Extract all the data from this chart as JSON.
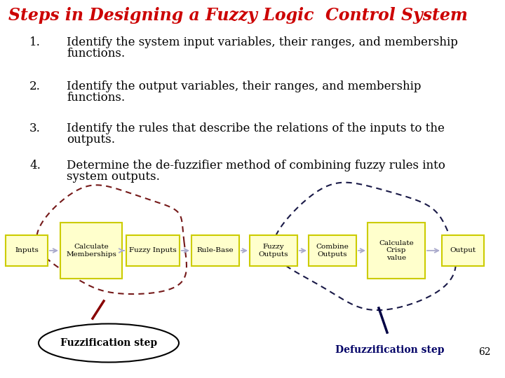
{
  "title": "Steps in Designing a Fuzzy Logic  Control System",
  "title_color": "#cc0000",
  "title_fontsize": 17,
  "background_color": "#ffffff",
  "text_color": "#000000",
  "step_numbers": [
    "1.",
    "2.",
    "3.",
    "4."
  ],
  "step_lines": [
    [
      "Identify the system input variables, their ranges, and membership",
      "functions."
    ],
    [
      "Identify the output variables, their ranges, and membership",
      "functions."
    ],
    [
      "Identify the rules that describe the relations of the inputs to the",
      "outputs."
    ],
    [
      "Determine the de-fuzzifier method of combining fuzzy rules into",
      "system outputs."
    ]
  ],
  "box_color": "#ffffcc",
  "box_edge_color": "#cccc00",
  "arrow_color": "#aaaacc",
  "fuzz_blob_color": "#660000",
  "defuzz_blob_color": "#000033",
  "fuzz_label": "Fuzzification step",
  "defuzz_label": "Defuzzification step",
  "page_number": "62"
}
